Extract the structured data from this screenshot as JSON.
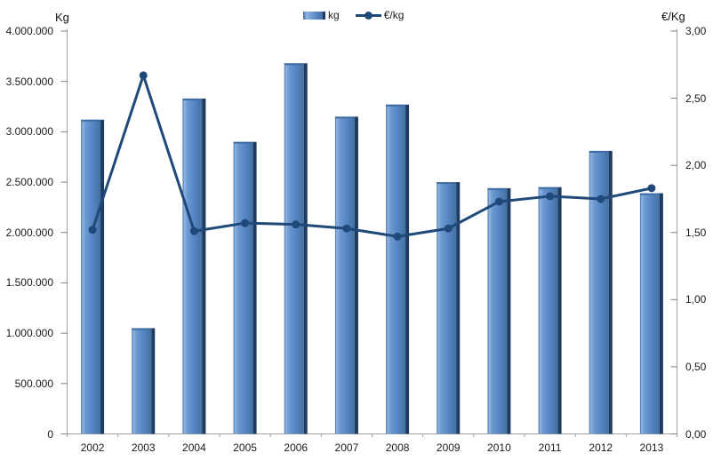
{
  "chart_data": {
    "type": "bar",
    "subtype": "combo bar + line, dual axis",
    "categories": [
      "2002",
      "2003",
      "2004",
      "2005",
      "2006",
      "2007",
      "2008",
      "2009",
      "2010",
      "2011",
      "2012",
      "2013"
    ],
    "series": [
      {
        "name": "kg",
        "type": "bar",
        "axis": "left",
        "values": [
          3120000,
          1050000,
          3330000,
          2900000,
          3680000,
          3150000,
          3270000,
          2500000,
          2440000,
          2450000,
          2810000,
          2390000
        ]
      },
      {
        "name": "€/kg",
        "type": "line",
        "axis": "right",
        "values": [
          1.52,
          2.67,
          1.51,
          1.57,
          1.56,
          1.53,
          1.47,
          1.53,
          1.73,
          1.77,
          1.75,
          1.83
        ]
      }
    ],
    "left_axis": {
      "title": "Kg",
      "min": 0,
      "max": 4000000,
      "step": 500000,
      "tick_labels_top_to_bottom": [
        "4.000.000",
        "3.500.000",
        "3.000.000",
        "2.500.000",
        "2.000.000",
        "1.500.000",
        "1.000.000",
        "500.000",
        "0"
      ]
    },
    "right_axis": {
      "title": "€/Kg",
      "min": 0,
      "max": 3,
      "step": 0.5,
      "tick_labels_top_to_bottom": [
        "3,00",
        "2,50",
        "2,00",
        "1,50",
        "1,00",
        "0,50",
        "0,00"
      ]
    },
    "legend": {
      "position": "top-center",
      "entries": [
        "kg",
        "€/kg"
      ]
    },
    "grid": false,
    "colors": {
      "bar_fill": "#5585C4",
      "bar_highlight": "#8FB4E2",
      "bar_edge_left": "#416E9C",
      "bar_shadow": "#1E3B61",
      "bar_cap": "#3E6BA2",
      "line": "#1F4979",
      "axis_line": "#A0A0A0",
      "tick": "#808080",
      "text": "#1a1a1a"
    }
  }
}
